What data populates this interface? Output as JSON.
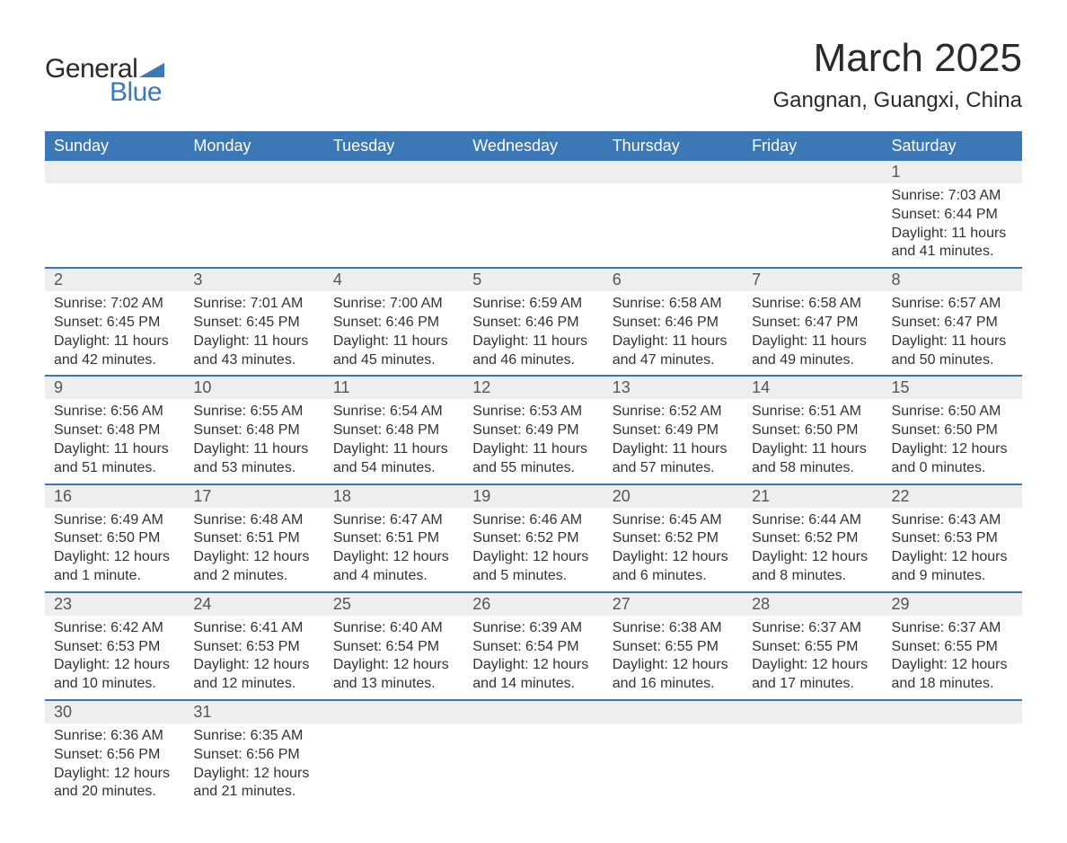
{
  "logo": {
    "text_general": "General",
    "text_blue": "Blue",
    "color_dark": "#2a2a2a",
    "color_blue": "#3b78b5"
  },
  "header": {
    "month_title": "March 2025",
    "location": "Gangnan, Guangxi, China"
  },
  "colors": {
    "header_bg": "#3b78b5",
    "header_text": "#ffffff",
    "day_number_bg": "#eeeeee",
    "day_number_text": "#555555",
    "content_text": "#333333",
    "border": "#3b78b5",
    "page_bg": "#ffffff"
  },
  "typography": {
    "title_fontsize": 44,
    "location_fontsize": 24,
    "header_fontsize": 18,
    "day_number_fontsize": 18,
    "content_fontsize": 16,
    "font_family": "Arial"
  },
  "day_headers": [
    "Sunday",
    "Monday",
    "Tuesday",
    "Wednesday",
    "Thursday",
    "Friday",
    "Saturday"
  ],
  "weeks": [
    [
      {
        "day": "",
        "sunrise": "",
        "sunset": "",
        "daylight1": "",
        "daylight2": ""
      },
      {
        "day": "",
        "sunrise": "",
        "sunset": "",
        "daylight1": "",
        "daylight2": ""
      },
      {
        "day": "",
        "sunrise": "",
        "sunset": "",
        "daylight1": "",
        "daylight2": ""
      },
      {
        "day": "",
        "sunrise": "",
        "sunset": "",
        "daylight1": "",
        "daylight2": ""
      },
      {
        "day": "",
        "sunrise": "",
        "sunset": "",
        "daylight1": "",
        "daylight2": ""
      },
      {
        "day": "",
        "sunrise": "",
        "sunset": "",
        "daylight1": "",
        "daylight2": ""
      },
      {
        "day": "1",
        "sunrise": "Sunrise: 7:03 AM",
        "sunset": "Sunset: 6:44 PM",
        "daylight1": "Daylight: 11 hours",
        "daylight2": "and 41 minutes."
      }
    ],
    [
      {
        "day": "2",
        "sunrise": "Sunrise: 7:02 AM",
        "sunset": "Sunset: 6:45 PM",
        "daylight1": "Daylight: 11 hours",
        "daylight2": "and 42 minutes."
      },
      {
        "day": "3",
        "sunrise": "Sunrise: 7:01 AM",
        "sunset": "Sunset: 6:45 PM",
        "daylight1": "Daylight: 11 hours",
        "daylight2": "and 43 minutes."
      },
      {
        "day": "4",
        "sunrise": "Sunrise: 7:00 AM",
        "sunset": "Sunset: 6:46 PM",
        "daylight1": "Daylight: 11 hours",
        "daylight2": "and 45 minutes."
      },
      {
        "day": "5",
        "sunrise": "Sunrise: 6:59 AM",
        "sunset": "Sunset: 6:46 PM",
        "daylight1": "Daylight: 11 hours",
        "daylight2": "and 46 minutes."
      },
      {
        "day": "6",
        "sunrise": "Sunrise: 6:58 AM",
        "sunset": "Sunset: 6:46 PM",
        "daylight1": "Daylight: 11 hours",
        "daylight2": "and 47 minutes."
      },
      {
        "day": "7",
        "sunrise": "Sunrise: 6:58 AM",
        "sunset": "Sunset: 6:47 PM",
        "daylight1": "Daylight: 11 hours",
        "daylight2": "and 49 minutes."
      },
      {
        "day": "8",
        "sunrise": "Sunrise: 6:57 AM",
        "sunset": "Sunset: 6:47 PM",
        "daylight1": "Daylight: 11 hours",
        "daylight2": "and 50 minutes."
      }
    ],
    [
      {
        "day": "9",
        "sunrise": "Sunrise: 6:56 AM",
        "sunset": "Sunset: 6:48 PM",
        "daylight1": "Daylight: 11 hours",
        "daylight2": "and 51 minutes."
      },
      {
        "day": "10",
        "sunrise": "Sunrise: 6:55 AM",
        "sunset": "Sunset: 6:48 PM",
        "daylight1": "Daylight: 11 hours",
        "daylight2": "and 53 minutes."
      },
      {
        "day": "11",
        "sunrise": "Sunrise: 6:54 AM",
        "sunset": "Sunset: 6:48 PM",
        "daylight1": "Daylight: 11 hours",
        "daylight2": "and 54 minutes."
      },
      {
        "day": "12",
        "sunrise": "Sunrise: 6:53 AM",
        "sunset": "Sunset: 6:49 PM",
        "daylight1": "Daylight: 11 hours",
        "daylight2": "and 55 minutes."
      },
      {
        "day": "13",
        "sunrise": "Sunrise: 6:52 AM",
        "sunset": "Sunset: 6:49 PM",
        "daylight1": "Daylight: 11 hours",
        "daylight2": "and 57 minutes."
      },
      {
        "day": "14",
        "sunrise": "Sunrise: 6:51 AM",
        "sunset": "Sunset: 6:50 PM",
        "daylight1": "Daylight: 11 hours",
        "daylight2": "and 58 minutes."
      },
      {
        "day": "15",
        "sunrise": "Sunrise: 6:50 AM",
        "sunset": "Sunset: 6:50 PM",
        "daylight1": "Daylight: 12 hours",
        "daylight2": "and 0 minutes."
      }
    ],
    [
      {
        "day": "16",
        "sunrise": "Sunrise: 6:49 AM",
        "sunset": "Sunset: 6:50 PM",
        "daylight1": "Daylight: 12 hours",
        "daylight2": "and 1 minute."
      },
      {
        "day": "17",
        "sunrise": "Sunrise: 6:48 AM",
        "sunset": "Sunset: 6:51 PM",
        "daylight1": "Daylight: 12 hours",
        "daylight2": "and 2 minutes."
      },
      {
        "day": "18",
        "sunrise": "Sunrise: 6:47 AM",
        "sunset": "Sunset: 6:51 PM",
        "daylight1": "Daylight: 12 hours",
        "daylight2": "and 4 minutes."
      },
      {
        "day": "19",
        "sunrise": "Sunrise: 6:46 AM",
        "sunset": "Sunset: 6:52 PM",
        "daylight1": "Daylight: 12 hours",
        "daylight2": "and 5 minutes."
      },
      {
        "day": "20",
        "sunrise": "Sunrise: 6:45 AM",
        "sunset": "Sunset: 6:52 PM",
        "daylight1": "Daylight: 12 hours",
        "daylight2": "and 6 minutes."
      },
      {
        "day": "21",
        "sunrise": "Sunrise: 6:44 AM",
        "sunset": "Sunset: 6:52 PM",
        "daylight1": "Daylight: 12 hours",
        "daylight2": "and 8 minutes."
      },
      {
        "day": "22",
        "sunrise": "Sunrise: 6:43 AM",
        "sunset": "Sunset: 6:53 PM",
        "daylight1": "Daylight: 12 hours",
        "daylight2": "and 9 minutes."
      }
    ],
    [
      {
        "day": "23",
        "sunrise": "Sunrise: 6:42 AM",
        "sunset": "Sunset: 6:53 PM",
        "daylight1": "Daylight: 12 hours",
        "daylight2": "and 10 minutes."
      },
      {
        "day": "24",
        "sunrise": "Sunrise: 6:41 AM",
        "sunset": "Sunset: 6:53 PM",
        "daylight1": "Daylight: 12 hours",
        "daylight2": "and 12 minutes."
      },
      {
        "day": "25",
        "sunrise": "Sunrise: 6:40 AM",
        "sunset": "Sunset: 6:54 PM",
        "daylight1": "Daylight: 12 hours",
        "daylight2": "and 13 minutes."
      },
      {
        "day": "26",
        "sunrise": "Sunrise: 6:39 AM",
        "sunset": "Sunset: 6:54 PM",
        "daylight1": "Daylight: 12 hours",
        "daylight2": "and 14 minutes."
      },
      {
        "day": "27",
        "sunrise": "Sunrise: 6:38 AM",
        "sunset": "Sunset: 6:55 PM",
        "daylight1": "Daylight: 12 hours",
        "daylight2": "and 16 minutes."
      },
      {
        "day": "28",
        "sunrise": "Sunrise: 6:37 AM",
        "sunset": "Sunset: 6:55 PM",
        "daylight1": "Daylight: 12 hours",
        "daylight2": "and 17 minutes."
      },
      {
        "day": "29",
        "sunrise": "Sunrise: 6:37 AM",
        "sunset": "Sunset: 6:55 PM",
        "daylight1": "Daylight: 12 hours",
        "daylight2": "and 18 minutes."
      }
    ],
    [
      {
        "day": "30",
        "sunrise": "Sunrise: 6:36 AM",
        "sunset": "Sunset: 6:56 PM",
        "daylight1": "Daylight: 12 hours",
        "daylight2": "and 20 minutes."
      },
      {
        "day": "31",
        "sunrise": "Sunrise: 6:35 AM",
        "sunset": "Sunset: 6:56 PM",
        "daylight1": "Daylight: 12 hours",
        "daylight2": "and 21 minutes."
      },
      {
        "day": "",
        "sunrise": "",
        "sunset": "",
        "daylight1": "",
        "daylight2": ""
      },
      {
        "day": "",
        "sunrise": "",
        "sunset": "",
        "daylight1": "",
        "daylight2": ""
      },
      {
        "day": "",
        "sunrise": "",
        "sunset": "",
        "daylight1": "",
        "daylight2": ""
      },
      {
        "day": "",
        "sunrise": "",
        "sunset": "",
        "daylight1": "",
        "daylight2": ""
      },
      {
        "day": "",
        "sunrise": "",
        "sunset": "",
        "daylight1": "",
        "daylight2": ""
      }
    ]
  ]
}
